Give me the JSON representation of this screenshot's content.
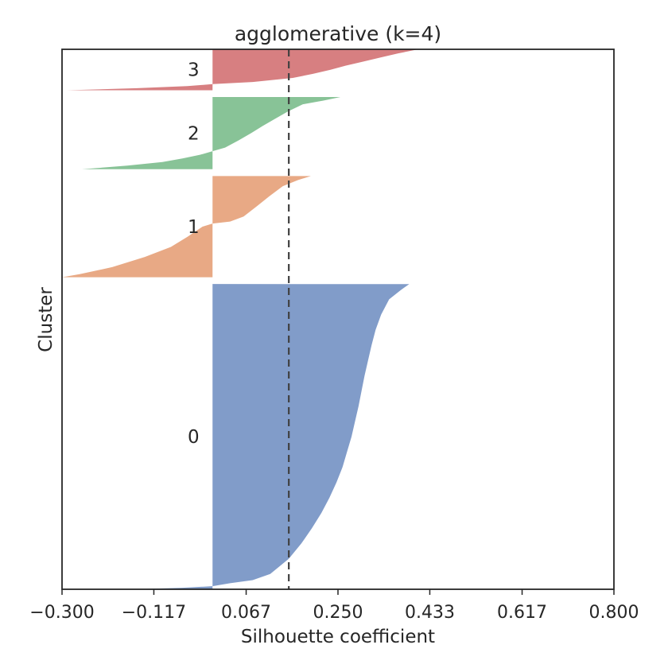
{
  "chart_data": {
    "type": "area",
    "title": "agglomerative (k=4)",
    "xlabel": "Silhouette coefficient",
    "ylabel": "Cluster",
    "xlim": [
      -0.3,
      0.8
    ],
    "xticks": [
      "−0.300",
      "−0.117",
      "0.067",
      "0.250",
      "0.433",
      "0.617",
      "0.800"
    ],
    "xtick_values": [
      -0.3,
      -0.117,
      0.067,
      0.25,
      0.433,
      0.617,
      0.8
    ],
    "average_silhouette": 0.152,
    "grid": false,
    "clusters": [
      {
        "label": "0",
        "color": "#8c9fcb",
        "fill": "#819cc9",
        "size": 0.537,
        "profile": [
          [
            0,
            0.392
          ],
          [
            0.02,
            0.375
          ],
          [
            0.05,
            0.352
          ],
          [
            0.1,
            0.336
          ],
          [
            0.15,
            0.325
          ],
          [
            0.2,
            0.317
          ],
          [
            0.25,
            0.31
          ],
          [
            0.3,
            0.303
          ],
          [
            0.35,
            0.297
          ],
          [
            0.4,
            0.291
          ],
          [
            0.45,
            0.284
          ],
          [
            0.5,
            0.277
          ],
          [
            0.55,
            0.268
          ],
          [
            0.6,
            0.259
          ],
          [
            0.65,
            0.247
          ],
          [
            0.7,
            0.233
          ],
          [
            0.75,
            0.217
          ],
          [
            0.8,
            0.198
          ],
          [
            0.85,
            0.177
          ],
          [
            0.9,
            0.152
          ],
          [
            0.95,
            0.115
          ],
          [
            0.97,
            0.08
          ],
          [
            0.98,
            0.035
          ],
          [
            0.99,
            0.0
          ],
          [
            0.995,
            -0.06
          ],
          [
            1.0,
            -0.16
          ]
        ]
      },
      {
        "label": "1",
        "color": "#e8a985",
        "fill": "#e8a985",
        "size": 0.178,
        "profile": [
          [
            0,
            0.196
          ],
          [
            0.04,
            0.17
          ],
          [
            0.1,
            0.14
          ],
          [
            0.2,
            0.113
          ],
          [
            0.3,
            0.088
          ],
          [
            0.4,
            0.062
          ],
          [
            0.45,
            0.035
          ],
          [
            0.47,
            0.0
          ],
          [
            0.5,
            -0.02
          ],
          [
            0.6,
            -0.05
          ],
          [
            0.7,
            -0.083
          ],
          [
            0.8,
            -0.135
          ],
          [
            0.9,
            -0.2
          ],
          [
            0.97,
            -0.265
          ],
          [
            1.0,
            -0.3
          ]
        ]
      },
      {
        "label": "2",
        "color": "#88c397",
        "fill": "#88c397",
        "size": 0.127,
        "profile": [
          [
            0,
            0.255
          ],
          [
            0.05,
            0.22
          ],
          [
            0.1,
            0.18
          ],
          [
            0.2,
            0.15
          ],
          [
            0.3,
            0.125
          ],
          [
            0.4,
            0.1
          ],
          [
            0.5,
            0.077
          ],
          [
            0.6,
            0.052
          ],
          [
            0.7,
            0.025
          ],
          [
            0.75,
            0.0
          ],
          [
            0.8,
            -0.025
          ],
          [
            0.85,
            -0.06
          ],
          [
            0.9,
            -0.1
          ],
          [
            0.95,
            -0.17
          ],
          [
            1.0,
            -0.26
          ]
        ]
      },
      {
        "label": "3",
        "color": "#d77f81",
        "fill": "#d77f81",
        "size": 0.072,
        "profile": [
          [
            0,
            0.41
          ],
          [
            0.1,
            0.37
          ],
          [
            0.2,
            0.335
          ],
          [
            0.3,
            0.3
          ],
          [
            0.4,
            0.265
          ],
          [
            0.5,
            0.235
          ],
          [
            0.6,
            0.2
          ],
          [
            0.7,
            0.16
          ],
          [
            0.8,
            0.08
          ],
          [
            0.85,
            0.0
          ],
          [
            0.9,
            -0.05
          ],
          [
            0.95,
            -0.15
          ],
          [
            1.0,
            -0.29
          ]
        ]
      }
    ],
    "bottom_gap": 0.0,
    "cluster_gap": 0.012
  }
}
